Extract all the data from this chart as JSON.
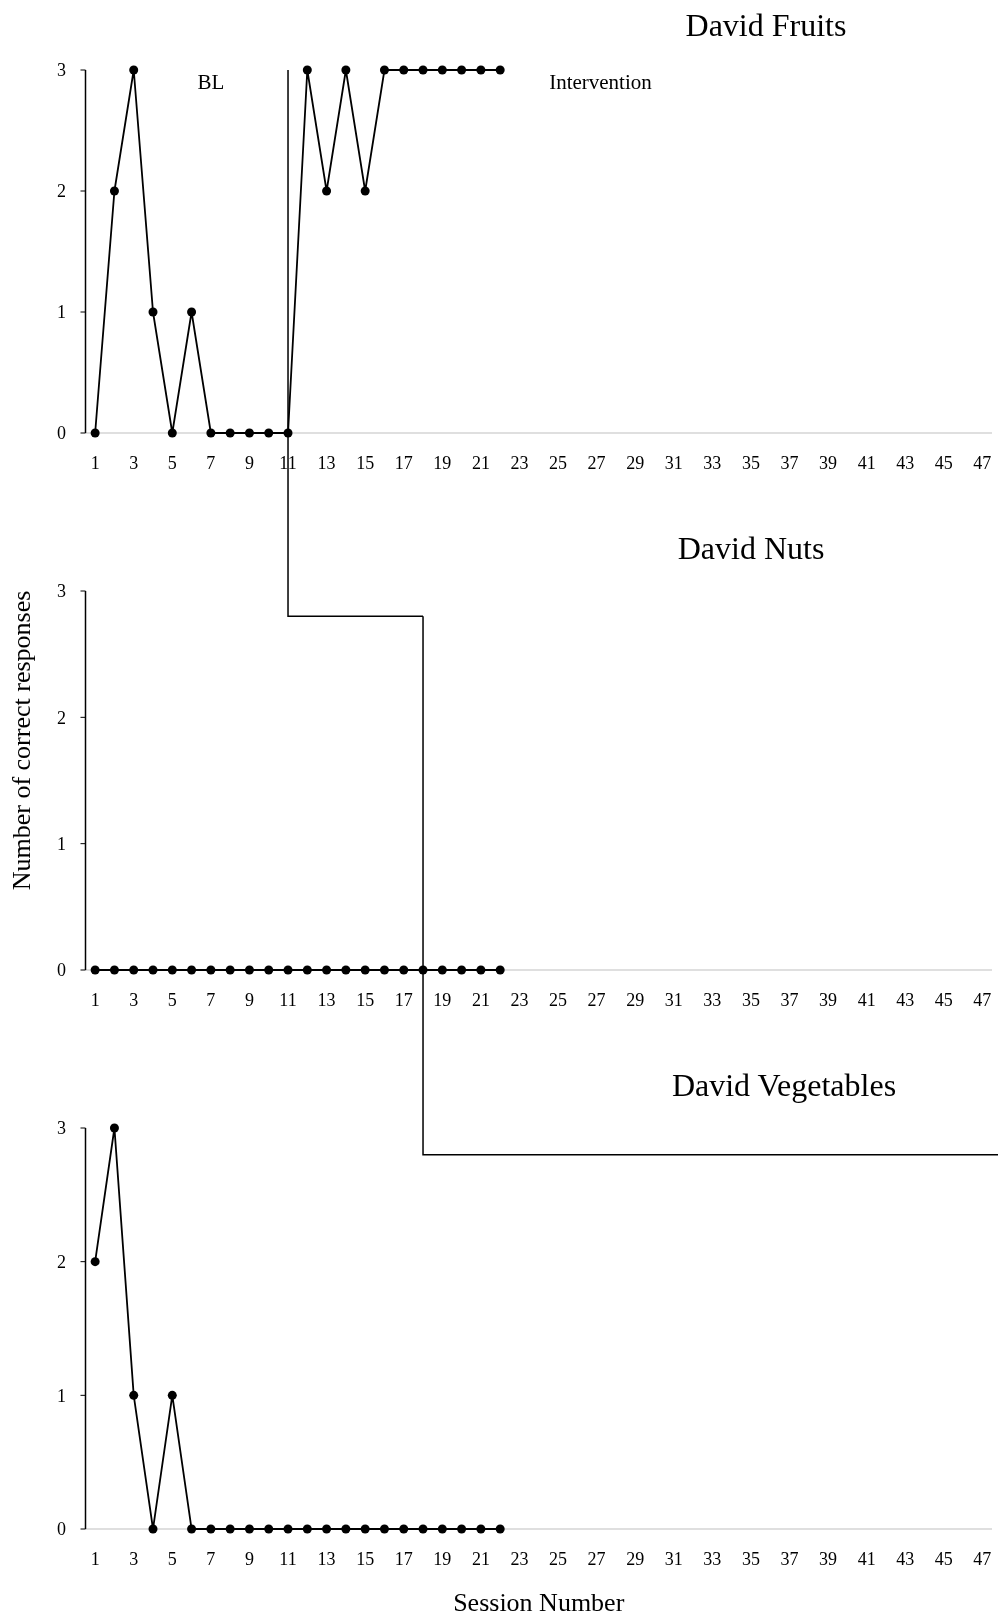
{
  "chart_data": [
    {
      "type": "line",
      "title": "David Fruits",
      "x": [
        1,
        2,
        3,
        4,
        5,
        6,
        7,
        8,
        9,
        10,
        11,
        12,
        13,
        14,
        15,
        16,
        17,
        18,
        19,
        20,
        21,
        22
      ],
      "series": [
        {
          "color": "#000000",
          "values": [
            0,
            2,
            3,
            1,
            0,
            1,
            0,
            0,
            0,
            0,
            0,
            3,
            2,
            3,
            2,
            3,
            3,
            3,
            3,
            3,
            3,
            3
          ]
        }
      ],
      "xlim": [
        0.5,
        47.5
      ],
      "xticks": [
        1,
        3,
        5,
        7,
        9,
        11,
        13,
        15,
        17,
        19,
        21,
        23,
        25,
        27,
        29,
        31,
        33,
        35,
        37,
        39,
        41,
        43,
        45,
        47
      ],
      "ylim": [
        0,
        3
      ],
      "yticks": [
        0,
        1,
        2,
        3
      ],
      "ref_lines": [
        {
          "axis": "x",
          "value": 11,
          "color": "#000000"
        }
      ],
      "annotations": [
        "BL",
        "Intervention"
      ],
      "marker": "circle",
      "line_style": "solid"
    },
    {
      "type": "line",
      "title": "David Nuts",
      "ylabel": "Number of correct responses",
      "x": [
        1,
        2,
        3,
        4,
        5,
        6,
        7,
        8,
        9,
        10,
        11,
        12,
        13,
        14,
        15,
        16,
        17,
        18,
        19,
        20,
        21,
        22
      ],
      "series": [
        {
          "color": "#000000",
          "values": [
            0,
            0,
            0,
            0,
            0,
            0,
            0,
            0,
            0,
            0,
            0,
            0,
            0,
            0,
            0,
            0,
            0,
            0,
            0,
            0,
            0,
            0
          ]
        }
      ],
      "xlim": [
        0.5,
        47.5
      ],
      "xticks": [
        1,
        3,
        5,
        7,
        9,
        11,
        13,
        15,
        17,
        19,
        21,
        23,
        25,
        27,
        29,
        31,
        33,
        35,
        37,
        39,
        41,
        43,
        45,
        47
      ],
      "ylim": [
        0,
        3
      ],
      "yticks": [
        0,
        1,
        2,
        3
      ],
      "ref_lines": [
        {
          "axis": "x",
          "value": 18,
          "color": "#000000"
        }
      ],
      "marker": "circle",
      "line_style": "solid"
    },
    {
      "type": "line",
      "title": "David Vegetables",
      "xlabel": "Session Number",
      "x": [
        1,
        2,
        3,
        4,
        5,
        6,
        7,
        8,
        9,
        10,
        11,
        12,
        13,
        14,
        15,
        16,
        17,
        18,
        19,
        20,
        21,
        22
      ],
      "series": [
        {
          "color": "#000000",
          "values": [
            2,
            3,
            1,
            0,
            1,
            0,
            0,
            0,
            0,
            0,
            0,
            0,
            0,
            0,
            0,
            0,
            0,
            0,
            0,
            0,
            0,
            0
          ]
        }
      ],
      "xlim": [
        0.5,
        47.5
      ],
      "xticks": [
        1,
        3,
        5,
        7,
        9,
        11,
        13,
        15,
        17,
        19,
        21,
        23,
        25,
        27,
        29,
        31,
        33,
        35,
        37,
        39,
        41,
        43,
        45,
        47
      ],
      "ylim": [
        0,
        3
      ],
      "yticks": [
        0,
        1,
        2,
        3
      ],
      "marker": "circle",
      "line_style": "solid"
    }
  ]
}
